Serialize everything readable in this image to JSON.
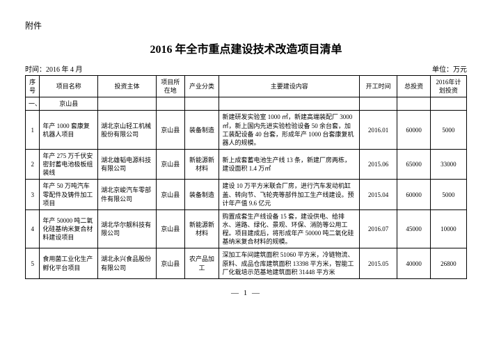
{
  "attachment_label": "附件",
  "title": "2016 年全市重点建设技术改造项目清单",
  "time_label": "时间：",
  "time_value": "2016 年 4 月",
  "unit_label": "单位：",
  "unit_value": "万元",
  "page_number": "— 1 —",
  "headers": {
    "seq": "序号",
    "name": "项目名称",
    "investor": "投资主体",
    "location": "项目所在地",
    "category": "产业分类",
    "content": "主要建设内容",
    "start": "开工时间",
    "total": "总投资",
    "plan": "2016年计划投资"
  },
  "county_row": {
    "label": "一、",
    "name": "京山县"
  },
  "rows": [
    {
      "seq": "1",
      "name": "年产 1000 套康复机器人项目",
      "investor": "湖北京山轻工机械股份有限公司",
      "location": "京山县",
      "category": "装备制造",
      "content": "新建研发实验室 1000 ㎡，新建高端装配厂 3000 ㎡，新上国内先进实验检验设备 50 余台套，加工装配设备 40 台套，形成年产 1000 台套康复机器人的规模。",
      "start": "2016.01",
      "total": "60000",
      "plan": "5000"
    },
    {
      "seq": "2",
      "name": "年产 275 万千伏安密封蓄电池极板组装线",
      "investor": "湖北雄韬电源科技有限公司",
      "location": "京山县",
      "category": "新能源新材料",
      "content": "新上成套蓄电池生产线 13 条，新建厂房两栋，建设面积 1.4 万㎡",
      "start": "2015.06",
      "total": "65000",
      "plan": "33000"
    },
    {
      "seq": "3",
      "name": "年产 50 万吨汽车零配件及铸件加工项目",
      "investor": "湖北京峻汽车零部件有限公司",
      "location": "京山县",
      "category": "装备制造",
      "content": "建设 10 万平方米联合厂房，进行汽车发动机缸盖、转向节、飞轮壳等部件加工生产线建设。预计年产值 9.6 亿元",
      "start": "2015.04",
      "total": "60000",
      "plan": "5000"
    },
    {
      "seq": "4",
      "name": "年产 50000 吨二氧化硅基纳米复合材料建设项目",
      "investor": "湖北华尔靓科技有限公司",
      "location": "京山县",
      "category": "新能源新材料",
      "content": "购置成套生产线设备 15 套，建设供电、给排水、道路、绿化、景观、环保、消防等公用工程。项目建成后，将形成年产 50000 吨二氧化硅基纳米复合材料的规模。",
      "start": "2016.07",
      "total": "45000",
      "plan": "10000"
    },
    {
      "seq": "5",
      "name": "食用菌工业化生产孵化平台项目",
      "investor": "湖北永兴食品股份有限公司",
      "location": "京山县",
      "category": "农产品加工",
      "content": "深加工车间建筑面积 51060 平方米，冷链物流、原料、成品仓库建筑面积 13398 平方米，智能工厂化栽培示范基地建筑面积 31448 平方米",
      "start": "2015.05",
      "total": "40000",
      "plan": "26800"
    }
  ]
}
